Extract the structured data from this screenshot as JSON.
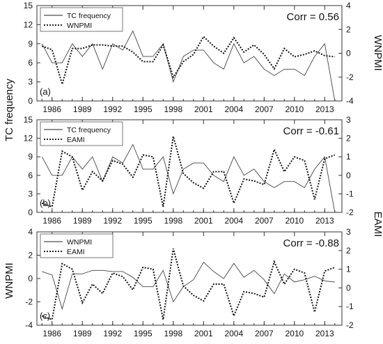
{
  "figure": {
    "left_ylabel_shared": "TC frequency",
    "right_ylabel_top": "WNPMI",
    "right_ylabel_mid": "EAMI"
  },
  "chart_data": [
    {
      "type": "line",
      "panel_label": "(a)",
      "annotation": "Corr = 0.56",
      "x": [
        1985,
        1986,
        1987,
        1988,
        1989,
        1990,
        1991,
        1992,
        1993,
        1994,
        1995,
        1996,
        1997,
        1998,
        1999,
        2000,
        2001,
        2002,
        2003,
        2004,
        2005,
        2006,
        2007,
        2008,
        2009,
        2010,
        2011,
        2012,
        2013,
        2014
      ],
      "xticks": [
        "1986",
        "1989",
        "1992",
        "1995",
        "1998",
        "2001",
        "2004",
        "2007",
        "2010",
        "2013"
      ],
      "xlim": [
        1984.5,
        2014.7
      ],
      "left_ylim": [
        0,
        15
      ],
      "left_yticks": [
        "0",
        "3",
        "6",
        "9",
        "12",
        "15"
      ],
      "right_ylim": [
        -4,
        4
      ],
      "right_yticks": [
        "-4",
        "-2",
        "0",
        "2",
        "4"
      ],
      "legend": {
        "position": "top-left",
        "entries": [
          "TC frequency",
          "WNPMI"
        ]
      },
      "series": [
        {
          "name": "TC frequency",
          "axis": "left",
          "style": "solid",
          "values": [
            9,
            6,
            6,
            9,
            7,
            9,
            5,
            9,
            8,
            11,
            7,
            7,
            9,
            3,
            7,
            8,
            8,
            6,
            5,
            9,
            6,
            7,
            5,
            4,
            5,
            5,
            4,
            7,
            9,
            0
          ]
        },
        {
          "name": "WNPMI",
          "axis": "right",
          "style": "dotted",
          "values": [
            0.6,
            0.3,
            -2.6,
            0.4,
            0.4,
            0.7,
            0.7,
            0.6,
            0.6,
            0.1,
            -0.7,
            -0.7,
            0.7,
            -2.0,
            -0.7,
            -0.1,
            1.4,
            0.6,
            0.0,
            1.3,
            0.1,
            0.7,
            -0.1,
            -1.3,
            0.4,
            -0.3,
            -0.1,
            0.2,
            -0.2,
            -0.3
          ]
        }
      ]
    },
    {
      "type": "line",
      "panel_label": "(b)",
      "annotation": "Corr = -0.61",
      "x": [
        1985,
        1986,
        1987,
        1988,
        1989,
        1990,
        1991,
        1992,
        1993,
        1994,
        1995,
        1996,
        1997,
        1998,
        1999,
        2000,
        2001,
        2002,
        2003,
        2004,
        2005,
        2006,
        2007,
        2008,
        2009,
        2010,
        2011,
        2012,
        2013,
        2014
      ],
      "xticks": [
        "1986",
        "1989",
        "1992",
        "1995",
        "1998",
        "2001",
        "2004",
        "2007",
        "2010",
        "2013"
      ],
      "xlim": [
        1984.5,
        2014.7
      ],
      "left_ylim": [
        0,
        15
      ],
      "left_yticks": [
        "0",
        "3",
        "6",
        "9",
        "12",
        "15"
      ],
      "right_ylim": [
        -2,
        3
      ],
      "right_yticks": [
        "-2",
        "-1",
        "0",
        "1",
        "2",
        "3"
      ],
      "legend": {
        "position": "top-left",
        "entries": [
          "TC frequency",
          "EAMI"
        ]
      },
      "series": [
        {
          "name": "TC frequency",
          "axis": "left",
          "style": "solid",
          "values": [
            9,
            6,
            6,
            9,
            7,
            9,
            5,
            9,
            8,
            11,
            7,
            7,
            9,
            3,
            7,
            8,
            8,
            6,
            5,
            9,
            6,
            7,
            5,
            4,
            5,
            5,
            4,
            7,
            9,
            0
          ]
        },
        {
          "name": "EAMI",
          "axis": "right",
          "style": "dotted",
          "values": [
            -1.5,
            -1.7,
            1.3,
            1.0,
            -0.8,
            0.2,
            -0.3,
            0.8,
            0.6,
            -0.1,
            1.1,
            1.0,
            -1.7,
            2.1,
            0.1,
            -0.4,
            -0.7,
            0.2,
            0.2,
            -1.5,
            -0.2,
            -0.3,
            -0.5,
            1.4,
            0.2,
            1.0,
            0.8,
            -1.3,
            0.9,
            1.1
          ]
        }
      ]
    },
    {
      "type": "line",
      "panel_label": "(c)",
      "annotation": "Corr = -0.88",
      "ylabel_left": "WNPMI",
      "ylabel_right": "EAMI",
      "x": [
        1985,
        1986,
        1987,
        1988,
        1989,
        1990,
        1991,
        1992,
        1993,
        1994,
        1995,
        1996,
        1997,
        1998,
        1999,
        2000,
        2001,
        2002,
        2003,
        2004,
        2005,
        2006,
        2007,
        2008,
        2009,
        2010,
        2011,
        2012,
        2013,
        2014
      ],
      "xticks": [
        "1986",
        "1989",
        "1992",
        "1995",
        "1998",
        "2001",
        "2004",
        "2007",
        "2010",
        "2013"
      ],
      "xlim": [
        1984.5,
        2014.7
      ],
      "left_ylim": [
        -4,
        4
      ],
      "left_yticks": [
        "-4",
        "-2",
        "0",
        "2",
        "4"
      ],
      "right_ylim": [
        -2,
        3
      ],
      "right_yticks": [
        "-2",
        "-1",
        "0",
        "1",
        "2",
        "3"
      ],
      "legend": {
        "position": "top-left",
        "entries": [
          "WNPMI",
          "EAMI"
        ]
      },
      "series": [
        {
          "name": "WNPMI",
          "axis": "left",
          "style": "solid",
          "values": [
            0.6,
            0.3,
            -2.6,
            0.4,
            0.4,
            0.7,
            0.7,
            0.6,
            0.6,
            0.1,
            -0.7,
            -0.7,
            0.7,
            -2.0,
            -0.7,
            -0.1,
            1.4,
            0.6,
            0.0,
            1.3,
            0.1,
            0.7,
            -0.1,
            -1.3,
            0.4,
            -0.3,
            -0.1,
            0.2,
            -0.2,
            -0.3
          ]
        },
        {
          "name": "EAMI",
          "axis": "right",
          "style": "dotted",
          "values": [
            -1.5,
            -1.7,
            1.3,
            1.0,
            -0.8,
            0.2,
            -0.3,
            0.8,
            0.6,
            -0.1,
            1.1,
            1.0,
            -1.7,
            2.1,
            0.1,
            -0.4,
            -0.7,
            0.2,
            0.2,
            -1.5,
            -0.2,
            -0.3,
            -0.5,
            1.4,
            0.2,
            1.0,
            0.8,
            -1.3,
            0.9,
            1.1
          ]
        }
      ]
    }
  ]
}
